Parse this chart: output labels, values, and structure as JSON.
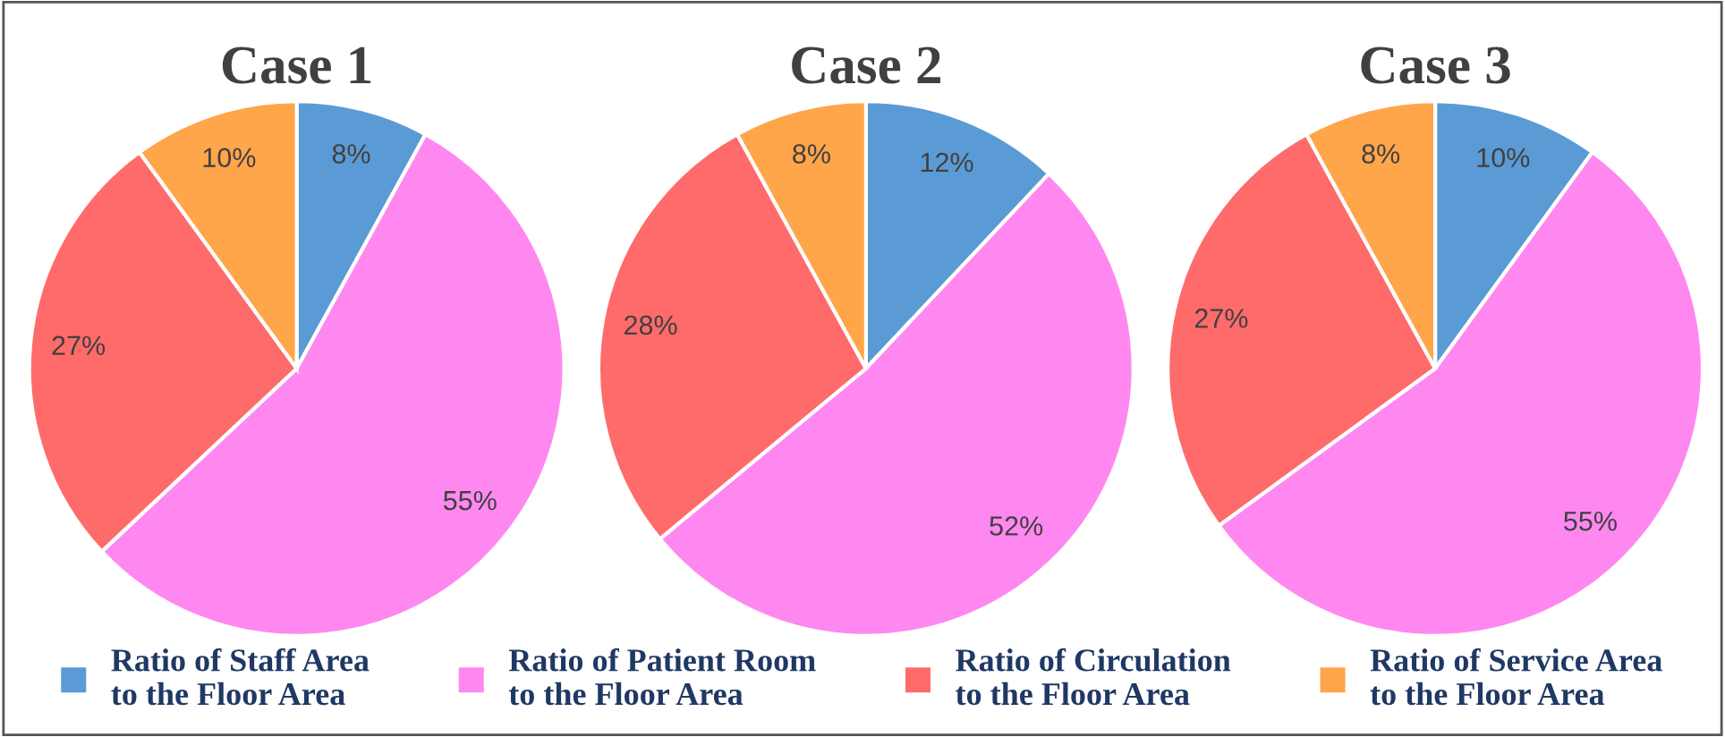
{
  "chart_data": [
    {
      "type": "pie",
      "title": "Case 1",
      "categories": [
        "Ratio of Staff Area\nto the Floor Area",
        "Ratio of Patient Room\nto the Floor Area",
        "Ratio of Circulation\nto the Floor Area",
        "Ratio of Service Area\nto the Floor Area"
      ],
      "values": [
        8,
        55,
        27,
        10
      ],
      "colors": [
        "#5b9bd5",
        "#ff88f0",
        "#ff6b6b",
        "#ffa54a"
      ],
      "value_labels": [
        "8%",
        "55%",
        "27%",
        "10%"
      ],
      "legend": "bottom"
    },
    {
      "type": "pie",
      "title": "Case 2",
      "categories": [
        null,
        null,
        null,
        null
      ],
      "values": [
        12,
        52,
        28,
        8
      ],
      "colors": [
        "#5b9bd5",
        "#ff88f0",
        "#ff6b6b",
        "#ffa54a"
      ],
      "value_labels": [
        "12%",
        "52%",
        "28%",
        "8%"
      ]
    },
    {
      "type": "pie",
      "title": "Case 3",
      "categories": [
        null,
        null,
        null,
        null
      ],
      "values": [
        10,
        55,
        27,
        8
      ],
      "colors": [
        "#5b9bd5",
        "#ff88f0",
        "#ff6b6b",
        "#ffa54a"
      ],
      "value_labels": [
        "10%",
        "55%",
        "27%",
        "8%"
      ]
    }
  ]
}
